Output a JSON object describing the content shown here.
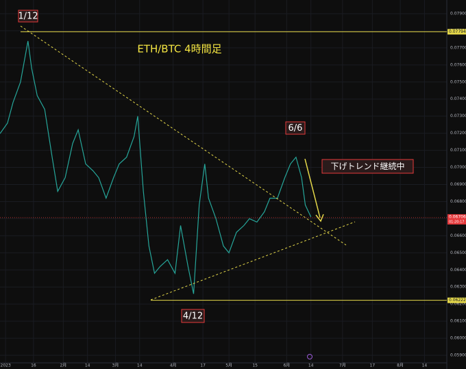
{
  "chart_data": {
    "type": "line",
    "title": "ETH/BTC 4時間足",
    "x": [
      -3,
      1,
      4,
      8,
      12,
      14,
      17,
      21,
      25,
      28,
      32,
      36,
      39,
      43,
      47,
      50,
      54,
      58,
      61,
      65,
      69,
      71,
      74,
      77,
      80,
      83,
      87,
      91,
      94,
      98,
      101,
      104,
      107,
      109,
      113,
      117,
      120,
      124,
      128,
      131,
      135,
      139,
      142,
      146,
      150,
      153,
      156,
      159,
      161,
      164
    ],
    "values": [
      0.07198,
      0.07259,
      0.0738,
      0.075,
      0.0774,
      0.0758,
      0.0742,
      0.0734,
      0.0706,
      0.0686,
      0.0694,
      0.0714,
      0.0722,
      0.0702,
      0.0698,
      0.0694,
      0.0682,
      0.0694,
      0.0702,
      0.0706,
      0.0718,
      0.073,
      0.0686,
      0.0654,
      0.0638,
      0.0642,
      0.0646,
      0.0638,
      0.0666,
      0.0642,
      0.0626,
      0.0678,
      0.0702,
      0.0682,
      0.067,
      0.0654,
      0.065,
      0.0662,
      0.0666,
      0.067,
      0.0668,
      0.0674,
      0.0682,
      0.0682,
      0.0694,
      0.0702,
      0.0706,
      0.0694,
      0.0678,
      0.0671
    ],
    "color": "#26a69a",
    "xlim": [
      -3,
      237
    ],
    "xticks": [
      {
        "value": 0,
        "label": "2023"
      },
      {
        "value": 15,
        "label": "16"
      },
      {
        "value": 31,
        "label": "2月"
      },
      {
        "value": 44,
        "label": "14"
      },
      {
        "value": 59,
        "label": "3月"
      },
      {
        "value": 72,
        "label": "14"
      },
      {
        "value": 90,
        "label": "4月"
      },
      {
        "value": 106,
        "label": "17"
      },
      {
        "value": 120,
        "label": "5月"
      },
      {
        "value": 134,
        "label": "15"
      },
      {
        "value": 151,
        "label": "6月"
      },
      {
        "value": 164,
        "label": "14"
      },
      {
        "value": 181,
        "label": "7月"
      },
      {
        "value": 197,
        "label": "17"
      },
      {
        "value": 212,
        "label": "8月"
      },
      {
        "value": 225,
        "label": "14"
      }
    ],
    "ylim": [
      0.05856,
      0.0798
    ],
    "yticks": [
      {
        "value": 0.079,
        "label": "0.07900"
      },
      {
        "value": 0.078,
        "label": "0.07800"
      },
      {
        "value": 0.077,
        "label": "0.07700"
      },
      {
        "value": 0.076,
        "label": "0.07600"
      },
      {
        "value": 0.075,
        "label": "0.07500"
      },
      {
        "value": 0.074,
        "label": "0.07400"
      },
      {
        "value": 0.073,
        "label": "0.07300"
      },
      {
        "value": 0.072,
        "label": "0.07200"
      },
      {
        "value": 0.071,
        "label": "0.07100"
      },
      {
        "value": 0.07,
        "label": "0.07000"
      },
      {
        "value": 0.069,
        "label": "0.06900"
      },
      {
        "value": 0.068,
        "label": "0.06800"
      },
      {
        "value": 0.067,
        "label": "0.06700"
      },
      {
        "value": 0.066,
        "label": "0.06600"
      },
      {
        "value": 0.065,
        "label": "0.06500"
      },
      {
        "value": 0.064,
        "label": "0.06400"
      },
      {
        "value": 0.063,
        "label": "0.06300"
      },
      {
        "value": 0.062,
        "label": "0.06200"
      },
      {
        "value": 0.061,
        "label": "0.06100"
      },
      {
        "value": 0.06,
        "label": "0.06000"
      },
      {
        "value": 0.059,
        "label": "0.05900"
      }
    ],
    "grid": true,
    "levels": [
      {
        "value": 0.07794,
        "label": "0.07794"
      },
      {
        "value": 0.06222,
        "label": "0.06222"
      }
    ],
    "last_price": {
      "value": 0.06706,
      "label": "0.06706",
      "countdown": "01:20:17"
    },
    "annotations": [
      "1/12",
      "4/12",
      "6/6",
      "下げトレンド継続中"
    ]
  }
}
